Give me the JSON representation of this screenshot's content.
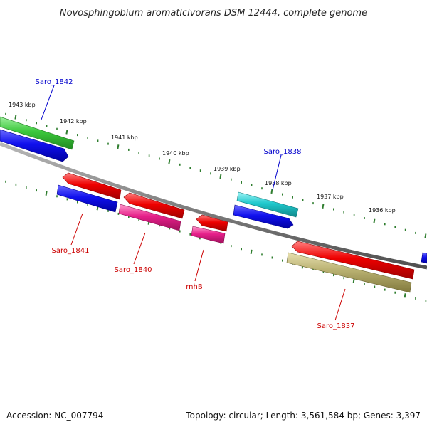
{
  "title": "Novosphingobium aromaticivorans DSM 12444, complete genome",
  "footer": {
    "accession": "Accession: NC_007794",
    "topology": "Topology: circular; Length: 3,561,584 bp; Genes: 3,397"
  },
  "ruler_labels": [
    "1943 kbp",
    "1942 kbp",
    "1941 kbp",
    "1940 kbp",
    "1939 kbp",
    "1938 kbp",
    "1937 kbp",
    "1936 kbp"
  ],
  "gene_labels": [
    {
      "text": "Saro_1842",
      "strand": "plus"
    },
    {
      "text": "Saro_1838",
      "strand": "plus"
    },
    {
      "text": "Saro_1841",
      "strand": "minus"
    },
    {
      "text": "Saro_1840",
      "strand": "minus"
    },
    {
      "text": "rnhB",
      "strand": "minus"
    },
    {
      "text": "Saro_1837",
      "strand": "minus"
    }
  ],
  "colors": {
    "plus_label": "#0000cc",
    "minus_label": "#cc0000",
    "backbone": "#808080",
    "ticks": "#2e7d2e",
    "red": "#ee0000",
    "blue": "#1010ee",
    "green": "#3cc83c",
    "cyan": "#20c8cc",
    "magenta": "#e6208a",
    "khaki": "#b8b070"
  }
}
